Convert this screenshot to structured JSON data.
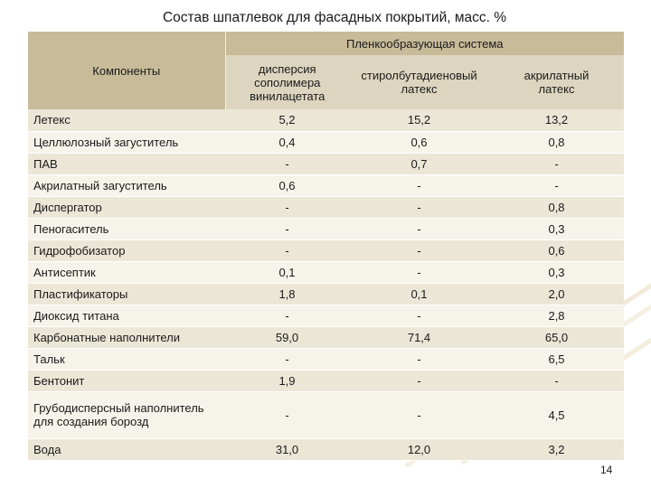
{
  "title": "Состав шпатлевок для фасадных покрытий, масс. %",
  "header": {
    "components": "Компоненты",
    "group": "Пленкообразующая система",
    "columns": [
      [
        "дисперсия",
        "сополимера",
        "винилацетата"
      ],
      [
        "стиролбутадиеновый",
        "латекс"
      ],
      [
        "акрилатный",
        "латекс"
      ]
    ]
  },
  "rows": [
    {
      "name": [
        "Летекс"
      ],
      "values": [
        "5,2",
        "15,2",
        "13,2"
      ]
    },
    {
      "name": [
        "Целлюлозный загуститель"
      ],
      "values": [
        "0,4",
        "0,6",
        "0,8"
      ]
    },
    {
      "name": [
        "ПАВ"
      ],
      "values": [
        "-",
        "0,7",
        "-"
      ]
    },
    {
      "name": [
        "Акрилатный загуститель"
      ],
      "values": [
        "0,6",
        "-",
        "-"
      ]
    },
    {
      "name": [
        "Диспергатор"
      ],
      "values": [
        "-",
        "-",
        "0,8"
      ]
    },
    {
      "name": [
        "Пеногаситель"
      ],
      "values": [
        "-",
        "-",
        "0,3"
      ]
    },
    {
      "name": [
        "Гидрофобизатор"
      ],
      "values": [
        "-",
        "-",
        "0,6"
      ]
    },
    {
      "name": [
        "Антисептик"
      ],
      "values": [
        "0,1",
        "-",
        "0,3"
      ]
    },
    {
      "name": [
        "Пластификаторы"
      ],
      "values": [
        "1,8",
        "0,1",
        "2,0"
      ]
    },
    {
      "name": [
        "Диоксид титана"
      ],
      "values": [
        "-",
        "-",
        "2,8"
      ]
    },
    {
      "name": [
        "Карбонатные наполнители"
      ],
      "values": [
        "59,0",
        "71,4",
        "65,0"
      ]
    },
    {
      "name": [
        "Тальк"
      ],
      "values": [
        "-",
        "-",
        "6,5"
      ]
    },
    {
      "name": [
        "Бентонит"
      ],
      "values": [
        "1,9",
        "-",
        "-"
      ]
    },
    {
      "name": [
        "Грубодисперсный наполнитель",
        "для создания борозд"
      ],
      "values": [
        "-",
        "-",
        "4,5"
      ]
    },
    {
      "name": [
        "Вода"
      ],
      "values": [
        "31,0",
        "12,0",
        "3,2"
      ]
    }
  ],
  "page_number": "14"
}
